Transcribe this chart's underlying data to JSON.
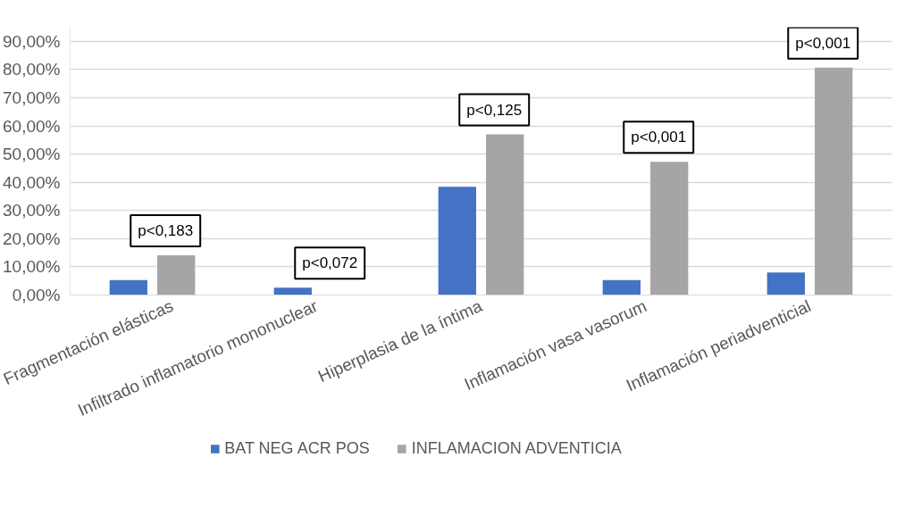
{
  "chart_data": {
    "type": "bar",
    "categories": [
      "Fragmentación elásticas",
      "Infiltrado inflamatorio mononuclear",
      "Hiperplasia de la íntima",
      "Inflamación vasa vasorum",
      "Inflamación periadventicial"
    ],
    "series": [
      {
        "name": "BAT NEG ACR POS",
        "color": "#4472c4",
        "values": [
          5.3,
          2.6,
          38.4,
          5.3,
          8.0
        ]
      },
      {
        "name": "INFLAMACION ADVENTICIA",
        "color": "#a5a5a5",
        "values": [
          14.1,
          0,
          57.0,
          47.3,
          80.7
        ]
      }
    ],
    "ylim": [
      0,
      95
    ],
    "yticks": [
      {
        "value": 0,
        "label": "0,00%"
      },
      {
        "value": 10,
        "label": "10,00%"
      },
      {
        "value": 20,
        "label": "20,00%"
      },
      {
        "value": 30,
        "label": "30,00%"
      },
      {
        "value": 40,
        "label": "40,00%"
      },
      {
        "value": 50,
        "label": "50,00%"
      },
      {
        "value": 60,
        "label": "60,00%"
      },
      {
        "value": 70,
        "label": "70,00%"
      },
      {
        "value": 80,
        "label": "80,00%"
      },
      {
        "value": 90,
        "label": "90,00%"
      }
    ],
    "grid": "y",
    "legend": "bottom",
    "annotations": [
      "p<0,183",
      "p<0,072",
      "p<0,125",
      "p<0,001",
      "p<0,001"
    ]
  }
}
